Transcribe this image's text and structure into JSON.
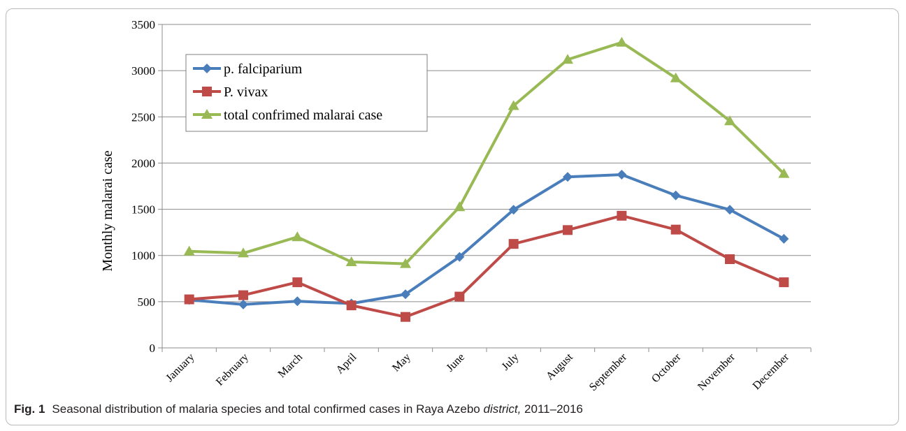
{
  "caption": {
    "label": "Fig. 1",
    "text_before": "Seasonal distribution of malaria species and total confirmed cases in Raya Azebo ",
    "text_italic": "district,",
    "text_after": " 2011–2016"
  },
  "chart_data": {
    "type": "line",
    "title": "",
    "xlabel": "",
    "ylabel": "Monthly malarai case",
    "ylim": [
      0,
      3500
    ],
    "yticks": [
      0,
      500,
      1000,
      1500,
      2000,
      2500,
      3000,
      3500
    ],
    "grid": true,
    "legend_position": "top-left",
    "categories": [
      "January",
      "February",
      "March",
      "April",
      "May",
      "June",
      "July",
      "August",
      "September",
      "October",
      "November",
      "December"
    ],
    "series": [
      {
        "name": "p. falciparium",
        "color": "#4a7ebb",
        "marker": "diamond",
        "values": [
          520,
          470,
          505,
          480,
          580,
          985,
          1495,
          1850,
          1875,
          1650,
          1495,
          1180
        ]
      },
      {
        "name": "P. vivax",
        "color": "#be4b48",
        "marker": "square",
        "values": [
          525,
          570,
          710,
          460,
          335,
          555,
          1125,
          1275,
          1430,
          1280,
          960,
          710
        ]
      },
      {
        "name": "total confrimed malarai  case",
        "color": "#98b954",
        "marker": "triangle",
        "values": [
          1045,
          1025,
          1200,
          930,
          910,
          1525,
          2620,
          3120,
          3305,
          2920,
          2455,
          1885
        ]
      }
    ]
  }
}
